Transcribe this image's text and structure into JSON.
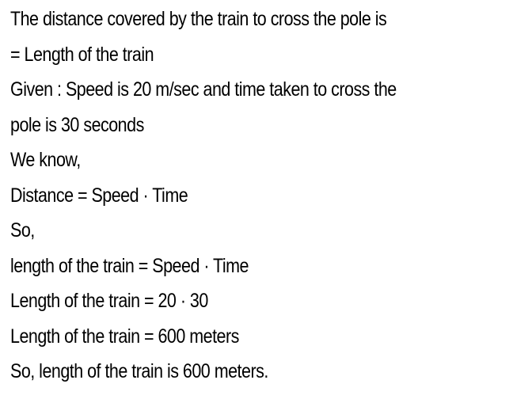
{
  "lines": [
    "The distance covered by the train to cross the pole is",
    "= Length of the train",
    "Given : Speed is 20 m/sec and time taken to cross the",
    "pole is 30 seconds",
    "We know,",
    "Distance = Speed · Time",
    "So,",
    "length of the train = Speed · Time",
    "Length of the train = 20 · 30",
    "Length of the train = 600 meters",
    "So, length of the train is 600 meters."
  ]
}
